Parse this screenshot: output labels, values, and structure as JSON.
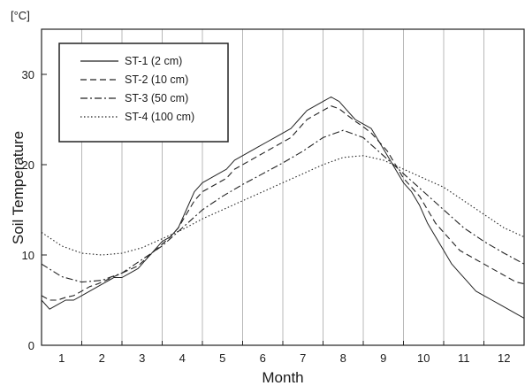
{
  "colors": {
    "background": "#ffffff",
    "axis": "#222222",
    "grid": "#b8b8b8",
    "series": "#222222"
  },
  "chart_data": {
    "type": "line",
    "title": "",
    "ylabel": "Soil Temperature",
    "yunit": "[°C]",
    "xlabel": "Month",
    "x_ticks": [
      "1",
      "2",
      "3",
      "4",
      "5",
      "6",
      "7",
      "8",
      "9",
      "10",
      "11",
      "12"
    ],
    "y_ticks": [
      "0",
      "10",
      "20",
      "30"
    ],
    "ylim": [
      0,
      35
    ],
    "xlim": [
      1,
      13
    ],
    "grid": "vertical month boundaries",
    "legend_position": "top-left",
    "series": [
      {
        "name": "ST-1 (2 cm)",
        "style": "solid",
        "x": [
          1.0,
          1.2,
          1.4,
          1.6,
          1.8,
          2.0,
          2.2,
          2.4,
          2.6,
          2.8,
          3.0,
          3.2,
          3.4,
          3.6,
          3.8,
          4.0,
          4.2,
          4.4,
          4.6,
          4.8,
          5.0,
          5.2,
          5.4,
          5.6,
          5.8,
          6.0,
          6.2,
          6.4,
          6.6,
          6.8,
          7.0,
          7.2,
          7.4,
          7.6,
          7.8,
          8.0,
          8.2,
          8.4,
          8.6,
          8.8,
          9.0,
          9.2,
          9.4,
          9.6,
          9.8,
          10.0,
          10.2,
          10.4,
          10.6,
          10.8,
          11.0,
          11.2,
          11.4,
          11.6,
          11.8,
          12.0,
          12.2,
          12.4,
          12.6,
          12.8,
          13.0
        ],
        "y": [
          5,
          4,
          4.5,
          5,
          5,
          5.5,
          6,
          6.5,
          7,
          7.5,
          7.5,
          8,
          8.5,
          9.5,
          10.5,
          11.5,
          12,
          13,
          15,
          17,
          18,
          18.5,
          19,
          19.5,
          20.5,
          21,
          21.5,
          22,
          22.5,
          23,
          23.5,
          24,
          25,
          26,
          26.5,
          27,
          27.5,
          27,
          26,
          25,
          24.5,
          24,
          22.5,
          21,
          19.5,
          18,
          17,
          15.5,
          13.5,
          12,
          10.5,
          9,
          8,
          7,
          6,
          5.5,
          5,
          4.5,
          4,
          3.5,
          3
        ]
      },
      {
        "name": "ST-2 (10 cm)",
        "style": "dashed",
        "x": [
          1.0,
          1.2,
          1.4,
          1.6,
          1.8,
          2.0,
          2.2,
          2.4,
          2.6,
          2.8,
          3.0,
          3.2,
          3.4,
          3.6,
          3.8,
          4.0,
          4.2,
          4.4,
          4.6,
          4.8,
          5.0,
          5.2,
          5.4,
          5.6,
          5.8,
          6.0,
          6.2,
          6.4,
          6.6,
          6.8,
          7.0,
          7.2,
          7.4,
          7.6,
          7.8,
          8.0,
          8.2,
          8.4,
          8.6,
          8.8,
          9.0,
          9.2,
          9.4,
          9.6,
          9.8,
          10.0,
          10.2,
          10.4,
          10.6,
          10.8,
          11.0,
          11.2,
          11.4,
          11.6,
          11.8,
          12.0,
          12.2,
          12.4,
          12.6,
          12.8,
          13.0
        ],
        "y": [
          5.5,
          5,
          5,
          5.3,
          5.5,
          6,
          6.5,
          6.8,
          7.2,
          7.6,
          8,
          8.4,
          8.8,
          9.6,
          10.4,
          11.2,
          12,
          13,
          14.5,
          16,
          17,
          17.5,
          18,
          18.5,
          19.5,
          20,
          20.5,
          21,
          21.5,
          22,
          22.5,
          23,
          24,
          25,
          25.5,
          26,
          26.5,
          26.2,
          25.5,
          24.8,
          24.2,
          23.5,
          22.5,
          21.5,
          20,
          18.5,
          17.5,
          16.5,
          15,
          13.5,
          12.5,
          11.5,
          10.5,
          10,
          9.5,
          9,
          8.5,
          8,
          7.5,
          7,
          6.8
        ]
      },
      {
        "name": "ST-3 (50 cm)",
        "style": "dashdot",
        "x": [
          1.0,
          1.5,
          2.0,
          2.5,
          3.0,
          3.5,
          4.0,
          4.5,
          5.0,
          5.5,
          6.0,
          6.5,
          7.0,
          7.5,
          8.0,
          8.5,
          9.0,
          9.5,
          10.0,
          10.5,
          11.0,
          11.5,
          12.0,
          12.5,
          13.0
        ],
        "y": [
          9,
          7.6,
          7,
          7.2,
          8,
          9.5,
          11,
          13,
          15,
          16.5,
          17.8,
          19,
          20.2,
          21.5,
          23,
          23.8,
          23,
          21,
          19,
          17,
          15,
          13,
          11.5,
          10.2,
          9
        ]
      },
      {
        "name": "ST-4 (100 cm)",
        "style": "dotted",
        "x": [
          1.0,
          1.5,
          2.0,
          2.5,
          3.0,
          3.5,
          4.0,
          4.5,
          5.0,
          5.5,
          6.0,
          6.5,
          7.0,
          7.5,
          8.0,
          8.5,
          9.0,
          9.5,
          10.0,
          10.5,
          11.0,
          11.5,
          12.0,
          12.5,
          13.0
        ],
        "y": [
          12.5,
          11,
          10.2,
          10,
          10.2,
          10.8,
          11.8,
          12.8,
          14,
          15,
          16,
          17,
          18,
          19,
          20,
          20.8,
          21,
          20.5,
          19.5,
          18.5,
          17.5,
          16,
          14.5,
          13,
          12
        ]
      }
    ]
  }
}
